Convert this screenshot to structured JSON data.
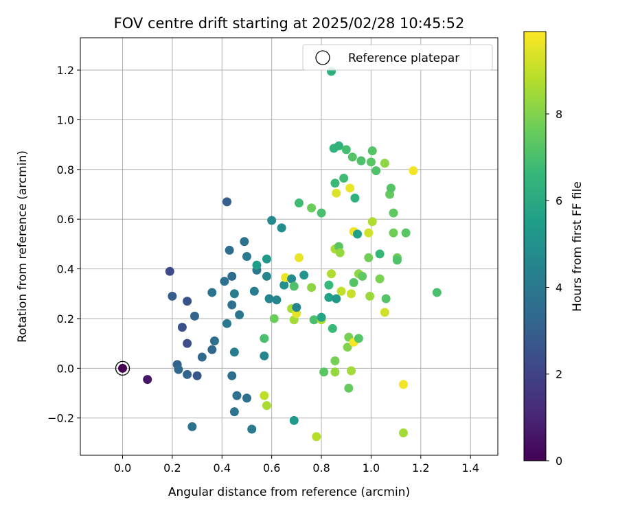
{
  "chart_data": {
    "type": "scatter",
    "title": "FOV centre drift starting at 2025/02/28 10:45:52",
    "xlabel": "Angular distance from reference (arcmin)",
    "ylabel": "Rotation from reference (arcmin)",
    "xlim": [
      -0.17,
      1.51
    ],
    "ylim": [
      -0.35,
      1.33
    ],
    "xticks": [
      "0.0",
      "0.2",
      "0.4",
      "0.6",
      "0.8",
      "1.0",
      "1.2",
      "1.4"
    ],
    "xtick_values": [
      0.0,
      0.2,
      0.4,
      0.6,
      0.8,
      1.0,
      1.2,
      1.4
    ],
    "yticks": [
      "−0.2",
      "0.0",
      "0.2",
      "0.4",
      "0.6",
      "0.8",
      "1.0",
      "1.2"
    ],
    "ytick_values": [
      -0.2,
      0.0,
      0.2,
      0.4,
      0.6,
      0.8,
      1.0,
      1.2
    ],
    "grid": true,
    "legend": {
      "placement": "top-right",
      "label": "Reference platepar"
    },
    "reference_point": {
      "x": 0.0,
      "y": 0.0
    },
    "colorbar": {
      "label": "Hours from first FF file",
      "min": 0,
      "max": 9.9,
      "ticks": [
        "0",
        "2",
        "4",
        "6",
        "8"
      ],
      "tick_values": [
        0,
        2,
        4,
        6,
        8
      ],
      "colormap": "viridis",
      "colormap_stops": [
        "#440154",
        "#482878",
        "#3e4989",
        "#31688e",
        "#26828e",
        "#1f9e89",
        "#35b779",
        "#6ece58",
        "#b5de2b",
        "#fde725"
      ]
    },
    "points": [
      {
        "x": 0.0,
        "y": 0.0,
        "h": 0.0
      },
      {
        "x": 0.1,
        "y": -0.045,
        "h": 0.6
      },
      {
        "x": 0.19,
        "y": 0.39,
        "h": 2.2
      },
      {
        "x": 0.2,
        "y": 0.29,
        "h": 2.9
      },
      {
        "x": 0.24,
        "y": 0.165,
        "h": 2.5
      },
      {
        "x": 0.26,
        "y": 0.27,
        "h": 2.6
      },
      {
        "x": 0.26,
        "y": 0.1,
        "h": 2.4
      },
      {
        "x": 0.29,
        "y": 0.21,
        "h": 3.2
      },
      {
        "x": 0.22,
        "y": 0.015,
        "h": 3.1
      },
      {
        "x": 0.225,
        "y": -0.005,
        "h": 3.4
      },
      {
        "x": 0.26,
        "y": -0.025,
        "h": 3.2
      },
      {
        "x": 0.3,
        "y": -0.03,
        "h": 2.7
      },
      {
        "x": 0.32,
        "y": 0.045,
        "h": 3.3
      },
      {
        "x": 0.28,
        "y": -0.235,
        "h": 3.8
      },
      {
        "x": 0.36,
        "y": 0.075,
        "h": 3.4
      },
      {
        "x": 0.37,
        "y": 0.11,
        "h": 3.6
      },
      {
        "x": 0.36,
        "y": 0.305,
        "h": 3.8
      },
      {
        "x": 0.41,
        "y": 0.35,
        "h": 3.7
      },
      {
        "x": 0.42,
        "y": 0.67,
        "h": 3.0
      },
      {
        "x": 0.43,
        "y": 0.475,
        "h": 3.5
      },
      {
        "x": 0.44,
        "y": 0.37,
        "h": 3.5
      },
      {
        "x": 0.44,
        "y": 0.255,
        "h": 3.6
      },
      {
        "x": 0.42,
        "y": 0.18,
        "h": 4.0
      },
      {
        "x": 0.45,
        "y": 0.3,
        "h": 4.1
      },
      {
        "x": 0.45,
        "y": 0.065,
        "h": 4.2
      },
      {
        "x": 0.47,
        "y": 0.215,
        "h": 3.9
      },
      {
        "x": 0.44,
        "y": -0.03,
        "h": 3.6
      },
      {
        "x": 0.46,
        "y": -0.11,
        "h": 3.7
      },
      {
        "x": 0.45,
        "y": -0.175,
        "h": 3.9
      },
      {
        "x": 0.5,
        "y": -0.12,
        "h": 3.6
      },
      {
        "x": 0.52,
        "y": -0.245,
        "h": 4.0
      },
      {
        "x": 0.49,
        "y": 0.51,
        "h": 3.7
      },
      {
        "x": 0.5,
        "y": 0.45,
        "h": 4.0
      },
      {
        "x": 0.53,
        "y": 0.31,
        "h": 4.2
      },
      {
        "x": 0.54,
        "y": 0.395,
        "h": 4.0
      },
      {
        "x": 0.54,
        "y": 0.415,
        "h": 5.5
      },
      {
        "x": 0.58,
        "y": 0.44,
        "h": 5.3
      },
      {
        "x": 0.58,
        "y": 0.37,
        "h": 4.6
      },
      {
        "x": 0.59,
        "y": 0.28,
        "h": 4.5
      },
      {
        "x": 0.57,
        "y": 0.05,
        "h": 4.6
      },
      {
        "x": 0.57,
        "y": 0.12,
        "h": 7.0
      },
      {
        "x": 0.57,
        "y": -0.11,
        "h": 8.9
      },
      {
        "x": 0.58,
        "y": -0.15,
        "h": 8.6
      },
      {
        "x": 0.6,
        "y": 0.595,
        "h": 4.7
      },
      {
        "x": 0.64,
        "y": 0.565,
        "h": 4.8
      },
      {
        "x": 0.62,
        "y": 0.275,
        "h": 4.5
      },
      {
        "x": 0.61,
        "y": 0.2,
        "h": 7.6
      },
      {
        "x": 0.65,
        "y": 0.335,
        "h": 5.0
      },
      {
        "x": 0.655,
        "y": 0.365,
        "h": 9.6
      },
      {
        "x": 0.68,
        "y": 0.36,
        "h": 4.8
      },
      {
        "x": 0.68,
        "y": 0.24,
        "h": 8.6
      },
      {
        "x": 0.69,
        "y": 0.33,
        "h": 7.1
      },
      {
        "x": 0.69,
        "y": 0.195,
        "h": 8.5
      },
      {
        "x": 0.7,
        "y": 0.22,
        "h": 9.5
      },
      {
        "x": 0.7,
        "y": 0.245,
        "h": 4.5
      },
      {
        "x": 0.69,
        "y": -0.21,
        "h": 5.3
      },
      {
        "x": 0.71,
        "y": 0.665,
        "h": 6.8
      },
      {
        "x": 0.71,
        "y": 0.445,
        "h": 9.6
      },
      {
        "x": 0.73,
        "y": 0.375,
        "h": 5.1
      },
      {
        "x": 0.76,
        "y": 0.645,
        "h": 7.6
      },
      {
        "x": 0.76,
        "y": 0.325,
        "h": 8.2
      },
      {
        "x": 0.77,
        "y": 0.195,
        "h": 7.0
      },
      {
        "x": 0.78,
        "y": -0.275,
        "h": 8.8
      },
      {
        "x": 0.8,
        "y": 0.625,
        "h": 7.0
      },
      {
        "x": 0.8,
        "y": 0.195,
        "h": 8.7
      },
      {
        "x": 0.8,
        "y": 0.205,
        "h": 5.8
      },
      {
        "x": 0.81,
        "y": -0.015,
        "h": 7.3
      },
      {
        "x": 0.84,
        "y": 1.195,
        "h": 6.3
      },
      {
        "x": 0.83,
        "y": 0.335,
        "h": 6.6
      },
      {
        "x": 0.83,
        "y": 0.285,
        "h": 5.6
      },
      {
        "x": 0.84,
        "y": 0.38,
        "h": 8.7
      },
      {
        "x": 0.845,
        "y": 0.16,
        "h": 6.7
      },
      {
        "x": 0.85,
        "y": 0.885,
        "h": 6.4
      },
      {
        "x": 0.855,
        "y": 0.745,
        "h": 6.7
      },
      {
        "x": 0.855,
        "y": 0.48,
        "h": 8.6
      },
      {
        "x": 0.86,
        "y": 0.705,
        "h": 9.4
      },
      {
        "x": 0.86,
        "y": 0.28,
        "h": 5.3
      },
      {
        "x": 0.855,
        "y": 0.03,
        "h": 7.8
      },
      {
        "x": 0.855,
        "y": -0.015,
        "h": 8.3
      },
      {
        "x": 0.87,
        "y": 0.895,
        "h": 6.4
      },
      {
        "x": 0.87,
        "y": 0.49,
        "h": 7.3
      },
      {
        "x": 0.875,
        "y": 0.465,
        "h": 8.3
      },
      {
        "x": 0.88,
        "y": 0.31,
        "h": 9.0
      },
      {
        "x": 0.89,
        "y": 0.765,
        "h": 6.8
      },
      {
        "x": 0.9,
        "y": 0.88,
        "h": 6.9
      },
      {
        "x": 0.905,
        "y": 0.085,
        "h": 8.0
      },
      {
        "x": 0.91,
        "y": 0.125,
        "h": 7.8
      },
      {
        "x": 0.91,
        "y": -0.08,
        "h": 7.5
      },
      {
        "x": 0.915,
        "y": 0.725,
        "h": 9.6
      },
      {
        "x": 0.92,
        "y": 0.3,
        "h": 9.1
      },
      {
        "x": 0.92,
        "y": -0.01,
        "h": 8.5
      },
      {
        "x": 0.925,
        "y": 0.85,
        "h": 7.2
      },
      {
        "x": 0.93,
        "y": 0.55,
        "h": 9.7
      },
      {
        "x": 0.93,
        "y": 0.345,
        "h": 7.2
      },
      {
        "x": 0.93,
        "y": 0.105,
        "h": 9.8
      },
      {
        "x": 0.935,
        "y": 0.685,
        "h": 6.4
      },
      {
        "x": 0.945,
        "y": 0.54,
        "h": 5.6
      },
      {
        "x": 0.95,
        "y": 0.38,
        "h": 8.2
      },
      {
        "x": 0.95,
        "y": 0.12,
        "h": 7.2
      },
      {
        "x": 0.96,
        "y": 0.835,
        "h": 7.1
      },
      {
        "x": 0.965,
        "y": 0.37,
        "h": 7.4
      },
      {
        "x": 0.99,
        "y": 0.545,
        "h": 9.2
      },
      {
        "x": 0.99,
        "y": 0.445,
        "h": 7.7
      },
      {
        "x": 0.995,
        "y": 0.29,
        "h": 8.4
      },
      {
        "x": 1.0,
        "y": 0.83,
        "h": 7.3
      },
      {
        "x": 1.005,
        "y": 0.875,
        "h": 7.2
      },
      {
        "x": 1.005,
        "y": 0.59,
        "h": 8.7
      },
      {
        "x": 1.02,
        "y": 0.795,
        "h": 7.1
      },
      {
        "x": 1.035,
        "y": 0.46,
        "h": 6.6
      },
      {
        "x": 1.035,
        "y": 0.36,
        "h": 7.9
      },
      {
        "x": 1.055,
        "y": 0.825,
        "h": 8.2
      },
      {
        "x": 1.055,
        "y": 0.225,
        "h": 9.2
      },
      {
        "x": 1.06,
        "y": 0.28,
        "h": 7.2
      },
      {
        "x": 1.075,
        "y": 0.7,
        "h": 7.5
      },
      {
        "x": 1.08,
        "y": 0.725,
        "h": 7.2
      },
      {
        "x": 1.09,
        "y": 0.625,
        "h": 7.4
      },
      {
        "x": 1.09,
        "y": 0.545,
        "h": 7.7
      },
      {
        "x": 1.105,
        "y": 0.445,
        "h": 7.6
      },
      {
        "x": 1.105,
        "y": 0.435,
        "h": 7.1
      },
      {
        "x": 1.13,
        "y": -0.065,
        "h": 9.7
      },
      {
        "x": 1.13,
        "y": -0.26,
        "h": 8.5
      },
      {
        "x": 1.14,
        "y": 0.545,
        "h": 7.3
      },
      {
        "x": 1.17,
        "y": 0.795,
        "h": 9.7
      },
      {
        "x": 1.265,
        "y": 0.305,
        "h": 7.0
      }
    ]
  }
}
